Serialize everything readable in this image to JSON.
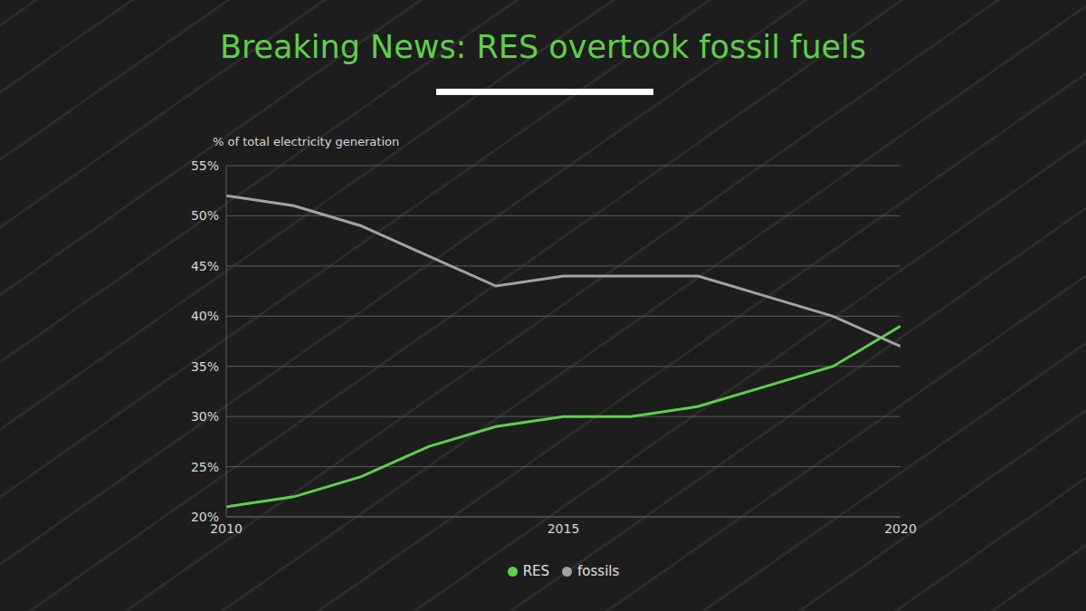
{
  "chart_data": {
    "type": "line",
    "title": "Breaking News: RES overtook fossil fuels",
    "y_label": "% of total electricity generation",
    "x": [
      2010,
      2011,
      2012,
      2013,
      2014,
      2015,
      2016,
      2017,
      2018,
      2019,
      2020
    ],
    "series": [
      {
        "name": "RES",
        "color": "#5fcf4a",
        "values": [
          21,
          22,
          24,
          27,
          29,
          30,
          30,
          31,
          33,
          35,
          39
        ]
      },
      {
        "name": "fossils",
        "color": "#a3a3a3",
        "values": [
          52,
          51,
          49,
          46,
          43,
          44,
          44,
          44,
          42,
          40,
          37
        ]
      }
    ],
    "xlim": [
      2010,
      2020
    ],
    "xticks": [
      2010,
      2015,
      2020
    ],
    "ylim": [
      20,
      55
    ],
    "yticks": [
      {
        "value": 20,
        "label": "20%"
      },
      {
        "value": 25,
        "label": "25%"
      },
      {
        "value": 30,
        "label": "30%"
      },
      {
        "value": 35,
        "label": "35%"
      },
      {
        "value": 40,
        "label": "40%"
      },
      {
        "value": 45,
        "label": "45%"
      },
      {
        "value": 50,
        "label": "50%"
      },
      {
        "value": 55,
        "label": "55%"
      }
    ],
    "grid": true,
    "legend": "bottom"
  }
}
